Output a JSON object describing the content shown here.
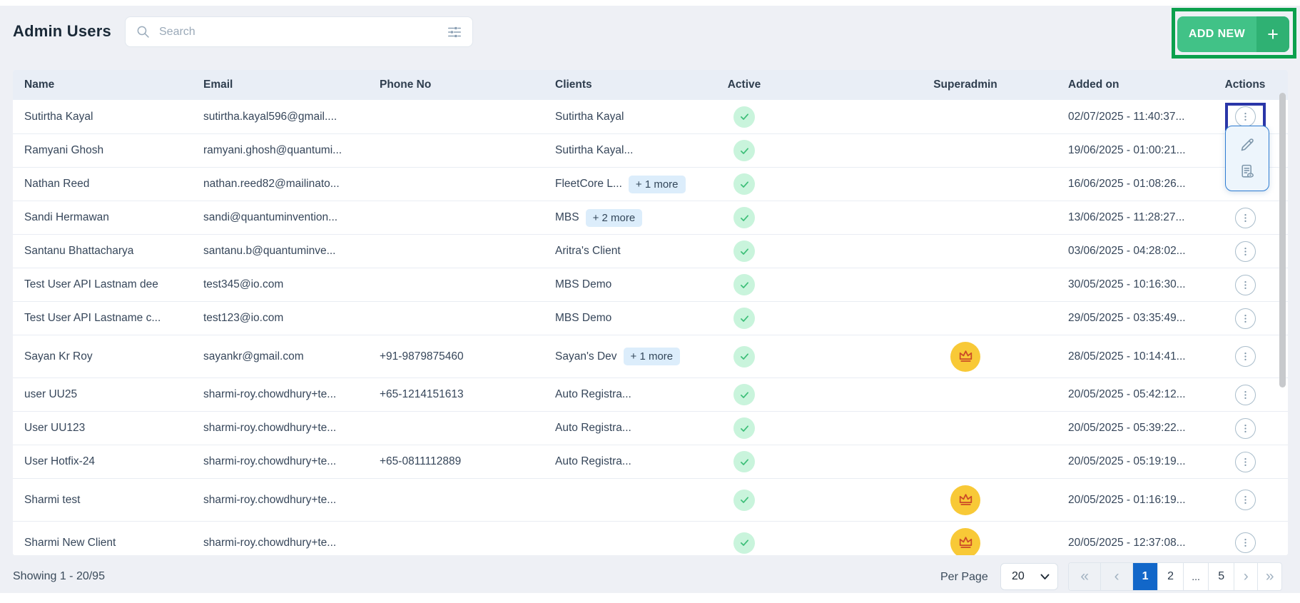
{
  "page": {
    "title": "Admin Users"
  },
  "search": {
    "placeholder": "Search"
  },
  "add_new": {
    "label": "ADD NEW",
    "plus": "+"
  },
  "icons": {
    "search": "magnifier",
    "filter": "horizontal-sliders",
    "add": "plus",
    "active": "check-in-green-circle",
    "superadmin": "crown-in-yellow-circle",
    "row_actions": "kebab-vertical-in-circle",
    "menu_edit": "pencil",
    "menu_view_log": "document-with-eye",
    "per_page": "chevron-down"
  },
  "table": {
    "columns": [
      "Name",
      "Email",
      "Phone No",
      "Clients",
      "Active",
      "Superadmin",
      "Added on",
      "Actions"
    ],
    "rows": [
      {
        "name": "Sutirtha Kayal",
        "email": "sutirtha.kayal596@gmail....",
        "phone": "",
        "client": "Sutirtha Kayal",
        "more": "",
        "active": true,
        "superadmin": false,
        "added": "02/07/2025 - 11:40:37...",
        "kebab": true,
        "highlighted": true,
        "menu_open": true
      },
      {
        "name": "Ramyani Ghosh",
        "email": "ramyani.ghosh@quantumi...",
        "phone": "",
        "client": "Sutirtha Kayal...",
        "more": "",
        "active": true,
        "superadmin": false,
        "added": "19/06/2025 - 01:00:21...",
        "kebab": false,
        "highlighted": false,
        "menu_open": false
      },
      {
        "name": "Nathan Reed",
        "email": "nathan.reed82@mailinato...",
        "phone": "",
        "client": "FleetCore L...",
        "more": "+ 1 more",
        "active": true,
        "superadmin": false,
        "added": "16/06/2025 - 01:08:26...",
        "kebab": false,
        "highlighted": false,
        "menu_open": false
      },
      {
        "name": "Sandi Hermawan",
        "email": "sandi@quantuminvention...",
        "phone": "",
        "client": "MBS",
        "more": "+ 2 more",
        "active": true,
        "superadmin": false,
        "added": "13/06/2025 - 11:28:27...",
        "kebab": true,
        "highlighted": false,
        "menu_open": false
      },
      {
        "name": "Santanu Bhattacharya",
        "email": "santanu.b@quantuminve...",
        "phone": "",
        "client": "Aritra's Client",
        "more": "",
        "active": true,
        "superadmin": false,
        "added": "03/06/2025 - 04:28:02...",
        "kebab": true,
        "highlighted": false,
        "menu_open": false
      },
      {
        "name": "Test User API Lastnam dee",
        "email": "test345@io.com",
        "phone": "",
        "client": "MBS Demo",
        "more": "",
        "active": true,
        "superadmin": false,
        "added": "30/05/2025 - 10:16:30...",
        "kebab": true,
        "highlighted": false,
        "menu_open": false
      },
      {
        "name": "Test User API Lastname c...",
        "email": "test123@io.com",
        "phone": "",
        "client": "MBS Demo",
        "more": "",
        "active": true,
        "superadmin": false,
        "added": "29/05/2025 - 03:35:49...",
        "kebab": true,
        "highlighted": false,
        "menu_open": false
      },
      {
        "name": "Sayan Kr Roy",
        "email": "sayankr@gmail.com",
        "phone": "+91-9879875460",
        "client": "Sayan's Dev",
        "more": "+ 1 more",
        "active": true,
        "superadmin": true,
        "added": "28/05/2025 - 10:14:41...",
        "kebab": true,
        "highlighted": false,
        "menu_open": false
      },
      {
        "name": "user UU25",
        "email": "sharmi-roy.chowdhury+te...",
        "phone": "+65-1214151613",
        "client": "Auto Registra...",
        "more": "",
        "active": true,
        "superadmin": false,
        "added": "20/05/2025 - 05:42:12...",
        "kebab": true,
        "highlighted": false,
        "menu_open": false
      },
      {
        "name": "User UU123",
        "email": "sharmi-roy.chowdhury+te...",
        "phone": "",
        "client": "Auto Registra...",
        "more": "",
        "active": true,
        "superadmin": false,
        "added": "20/05/2025 - 05:39:22...",
        "kebab": true,
        "highlighted": false,
        "menu_open": false
      },
      {
        "name": "User Hotfix-24",
        "email": "sharmi-roy.chowdhury+te...",
        "phone": "+65-0811112889",
        "client": "Auto Registra...",
        "more": "",
        "active": true,
        "superadmin": false,
        "added": "20/05/2025 - 05:19:19...",
        "kebab": true,
        "highlighted": false,
        "menu_open": false
      },
      {
        "name": "Sharmi test",
        "email": "sharmi-roy.chowdhury+te...",
        "phone": "",
        "client": "",
        "more": "",
        "active": true,
        "superadmin": true,
        "added": "20/05/2025 - 01:16:19...",
        "kebab": true,
        "highlighted": false,
        "menu_open": false
      },
      {
        "name": "Sharmi New Client",
        "email": "sharmi-roy.chowdhury+te...",
        "phone": "",
        "client": "",
        "more": "",
        "active": true,
        "superadmin": true,
        "added": "20/05/2025 - 12:37:08...",
        "kebab": true,
        "highlighted": false,
        "menu_open": false
      }
    ]
  },
  "actions_menu": {
    "items": [
      "edit",
      "view-log"
    ]
  },
  "footer": {
    "showing": "Showing 1 - 20/95",
    "per_page_label": "Per Page",
    "per_page_value": "20",
    "pagination": [
      {
        "name": "first",
        "label": "«",
        "type": "nav",
        "disabled": true,
        "active": false
      },
      {
        "name": "prev",
        "label": "‹",
        "type": "nav",
        "disabled": true,
        "active": false
      },
      {
        "name": "page-1",
        "label": "1",
        "type": "page",
        "disabled": false,
        "active": true
      },
      {
        "name": "page-2",
        "label": "2",
        "type": "page",
        "disabled": false,
        "active": false
      },
      {
        "name": "ellipsis",
        "label": "...",
        "type": "ellipsis",
        "disabled": false,
        "active": false
      },
      {
        "name": "page-5",
        "label": "5",
        "type": "page",
        "disabled": false,
        "active": false
      },
      {
        "name": "next",
        "label": "›",
        "type": "nav",
        "disabled": false,
        "active": false
      },
      {
        "name": "last",
        "label": "»",
        "type": "nav",
        "disabled": false,
        "active": false
      }
    ]
  },
  "colors": {
    "page_bg": "#eef0f5",
    "header_row_bg": "#e9eef6",
    "accent_green": "#41c287",
    "accent_green_dark": "#2fb173",
    "annotation_green": "#0ba04d",
    "annotation_blue": "#2a36a8",
    "menu_border_blue": "#2e7cd2",
    "check_bg": "#c9f4dc",
    "check_green": "#3bbe77",
    "crown_bg": "#f8c937",
    "crown_red": "#cb4a27",
    "badge_bg": "#dcedfb",
    "active_page_blue": "#1267c9"
  }
}
